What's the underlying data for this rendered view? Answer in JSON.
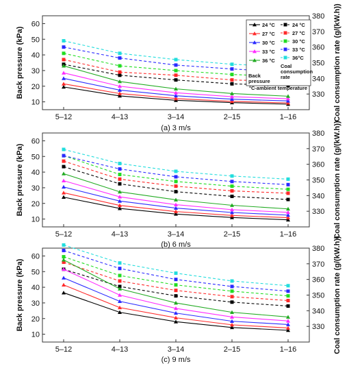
{
  "chart_data": {
    "type": "line",
    "categories": [
      "5–12",
      "4–13",
      "3–14",
      "2–15",
      "1–16"
    ],
    "y_left_label": "Back pressure (kPa)",
    "y_right_label": "Coal consumption rate (g/(kW.h))",
    "legend": {
      "back_pressure_entries": [
        "24 °C",
        "27 °C",
        "30 °C",
        "33 °C",
        "36 °C"
      ],
      "coal_entries": [
        "24 °C",
        "27 °C",
        "30 °C",
        "33 °C",
        "36°C"
      ],
      "back_pressure_title_1": "Back",
      "back_pressure_title_2": "pressure",
      "coal_title_1": "Coal",
      "coal_title_2": "consumption",
      "coal_title_3": "rate",
      "note": "°C-ambient temperature",
      "placement": "top-right of panel (a)"
    },
    "series_colors": [
      "#000000",
      "#ff2a2a",
      "#2a2aff",
      "#ff2aff",
      "#22aa22"
    ],
    "coal_colors": [
      "#000000",
      "#ff2a2a",
      "#22dd22",
      "#2a2aff",
      "#22dddd"
    ],
    "panels": [
      {
        "caption": "(a) 3 m/s",
        "ylim_left": [
          5,
          65
        ],
        "yticks_left": [
          10,
          20,
          30,
          40,
          50,
          60
        ],
        "ylim_right": [
          320,
          380
        ],
        "yticks_right": [
          330,
          340,
          350,
          360,
          370,
          380
        ],
        "back_pressure": [
          {
            "name": "24 °C",
            "values": [
              19.5,
              13.8,
              11,
              9.5,
              8.5
            ]
          },
          {
            "name": "27 °C",
            "values": [
              21.5,
              15.3,
              12.1,
              10.3,
              9.3
            ]
          },
          {
            "name": "30 °C",
            "values": [
              25,
              17.5,
              13.9,
              11.7,
              10.6
            ]
          },
          {
            "name": "33 °C",
            "values": [
              28.5,
              20,
              15.8,
              13.3,
              12
            ]
          },
          {
            "name": "36 °C",
            "values": [
              33,
              23,
              18.3,
              15.3,
              13.6
            ]
          }
        ],
        "coal_rate": [
          {
            "name": "24 °C",
            "values": [
              349,
              342,
              339,
              336.5,
              335.5
            ]
          },
          {
            "name": "27 °C",
            "values": [
              352,
              344,
              342,
              339,
              338
            ]
          },
          {
            "name": "30 °C",
            "values": [
              356,
              348,
              345,
              342.5,
              341
            ]
          },
          {
            "name": "33 °C",
            "values": [
              360,
              353,
              348.5,
              346,
              344
            ]
          },
          {
            "name": "36°C",
            "values": [
              364,
              356,
              352,
              349,
              347.5
            ]
          }
        ]
      },
      {
        "caption": "(b) 6 m/s",
        "ylim_left": [
          5,
          65
        ],
        "yticks_left": [
          10,
          20,
          30,
          40,
          50,
          60
        ],
        "ylim_right": [
          320,
          380
        ],
        "yticks_right": [
          330,
          340,
          350,
          360,
          370,
          380
        ],
        "back_pressure": [
          {
            "name": "24 °C",
            "values": [
              24,
              16.8,
              13.2,
              11,
              9.5
            ]
          },
          {
            "name": "27 °C",
            "values": [
              26.8,
              18.7,
              14.8,
              12.3,
              10.9
            ]
          },
          {
            "name": "30 °C",
            "values": [
              30.5,
              21.5,
              17,
              14.2,
              12.5
            ]
          },
          {
            "name": "33 °C",
            "values": [
              34.5,
              24.2,
              19.2,
              16,
              14.3
            ]
          },
          {
            "name": "36 °C",
            "values": [
              39,
              27.4,
              22.3,
              18.8,
              16.5
            ]
          }
        ],
        "coal_rate": [
          {
            "name": "24 °C",
            "values": [
              358.5,
              347.5,
              342.5,
              339.5,
              337.5
            ]
          },
          {
            "name": "27 °C",
            "values": [
              362,
              350.5,
              346,
              343,
              341.5
            ]
          },
          {
            "name": "30 °C",
            "values": [
              365.5,
              353.5,
              349,
              346,
              344
            ]
          },
          {
            "name": "33 °C",
            "values": [
              365.5,
              357,
              352,
              349,
              347
            ]
          },
          {
            "name": "36°C",
            "values": [
              369.5,
              360.5,
              355.5,
              352.5,
              350.5
            ]
          }
        ]
      },
      {
        "caption": "(c) 9 m/s",
        "ylim_left": [
          5,
          65
        ],
        "yticks_left": [
          10,
          20,
          30,
          40,
          50,
          60
        ],
        "ylim_right": [
          320,
          380
        ],
        "yticks_right": [
          330,
          340,
          350,
          360,
          370,
          380
        ],
        "back_pressure": [
          {
            "name": "24 °C",
            "values": [
              36.5,
              24,
              18,
              14.3,
              12.5
            ]
          },
          {
            "name": "27 °C",
            "values": [
              41.5,
              27,
              20.5,
              16,
              14
            ]
          },
          {
            "name": "30 °C",
            "values": [
              46,
              31,
              23.5,
              18.3,
              16.2
            ]
          },
          {
            "name": "33 °C",
            "values": [
              51.5,
              35,
              26.5,
              21,
              18.5
            ]
          },
          {
            "name": "36 °C",
            "values": [
              57.5,
              39,
              30,
              24,
              21
            ]
          }
        ],
        "coal_rate": [
          {
            "name": "24 °C",
            "values": [
              366.5,
              355.5,
              349.5,
              345.5,
              343
            ]
          },
          {
            "name": "27 °C",
            "values": [
              371,
              359,
              353,
              349,
              346.5
            ]
          },
          {
            "name": "30 °C",
            "values": [
              374.5,
              362.5,
              356.5,
              352.5,
              349.5
            ]
          },
          {
            "name": "33 °C",
            "values": [
              378.5,
              367,
              360,
              355.5,
              352.5
            ]
          },
          {
            "name": "36°C",
            "values": [
              382,
              370.5,
              364,
              359,
              356
            ]
          }
        ]
      }
    ]
  }
}
